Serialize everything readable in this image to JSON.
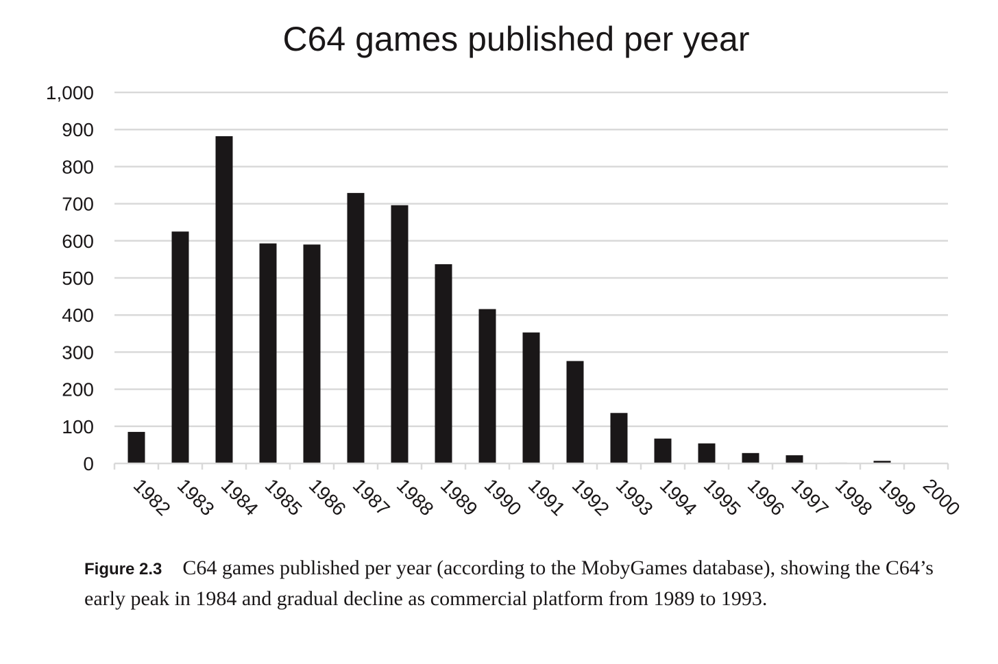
{
  "chart_data": {
    "type": "bar",
    "title": "C64 games published per year",
    "xlabel": "",
    "ylabel": "",
    "categories": [
      "1982",
      "1983",
      "1984",
      "1985",
      "1986",
      "1987",
      "1988",
      "1989",
      "1990",
      "1991",
      "1992",
      "1993",
      "1994",
      "1995",
      "1996",
      "1997",
      "1998",
      "1999",
      "2000"
    ],
    "values": [
      85,
      625,
      882,
      593,
      590,
      729,
      696,
      537,
      416,
      353,
      276,
      136,
      67,
      54,
      28,
      22,
      2,
      7,
      0
    ],
    "ylim": [
      0,
      1000
    ],
    "yticks": [
      "0",
      "100",
      "200",
      "300",
      "400",
      "500",
      "600",
      "700",
      "800",
      "900",
      "1,000"
    ],
    "ytick_values": [
      0,
      100,
      200,
      300,
      400,
      500,
      600,
      700,
      800,
      900,
      1000
    ],
    "grid": true,
    "legend": "none",
    "bar_color": "#1a1718",
    "grid_color": "#d9d9d9"
  },
  "caption": {
    "label": "Figure 2.3",
    "text": "C64 games published per year (according to the MobyGames database), showing the C64’s early peak in 1984 and gradual decline as commercial platform from 1989 to 1993."
  }
}
